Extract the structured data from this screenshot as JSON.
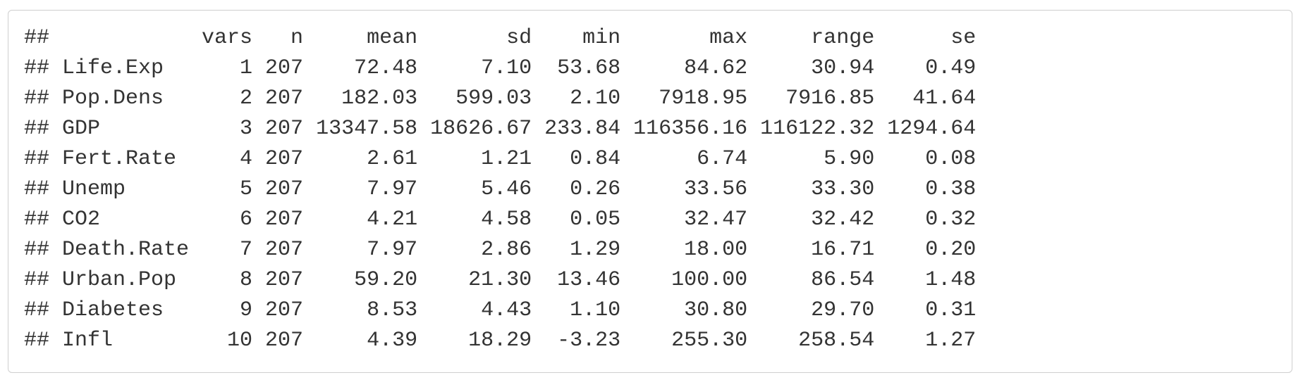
{
  "output": {
    "prefix": "##",
    "header": [
      "",
      "vars",
      "n",
      "mean",
      "sd",
      "min",
      "max",
      "range",
      "se"
    ],
    "rows": [
      [
        "Life.Exp",
        "1",
        "207",
        "72.48",
        "7.10",
        "53.68",
        "84.62",
        "30.94",
        "0.49"
      ],
      [
        "Pop.Dens",
        "2",
        "207",
        "182.03",
        "599.03",
        "2.10",
        "7918.95",
        "7916.85",
        "41.64"
      ],
      [
        "GDP",
        "3",
        "207",
        "13347.58",
        "18626.67",
        "233.84",
        "116356.16",
        "116122.32",
        "1294.64"
      ],
      [
        "Fert.Rate",
        "4",
        "207",
        "2.61",
        "1.21",
        "0.84",
        "6.74",
        "5.90",
        "0.08"
      ],
      [
        "Unemp",
        "5",
        "207",
        "7.97",
        "5.46",
        "0.26",
        "33.56",
        "33.30",
        "0.38"
      ],
      [
        "CO2",
        "6",
        "207",
        "4.21",
        "4.58",
        "0.05",
        "32.47",
        "32.42",
        "0.32"
      ],
      [
        "Death.Rate",
        "7",
        "207",
        "7.97",
        "2.86",
        "1.29",
        "18.00",
        "16.71",
        "0.20"
      ],
      [
        "Urban.Pop",
        "8",
        "207",
        "59.20",
        "21.30",
        "13.46",
        "100.00",
        "86.54",
        "1.48"
      ],
      [
        "Diabetes",
        "9",
        "207",
        "8.53",
        "4.43",
        "1.10",
        "30.80",
        "29.70",
        "0.31"
      ],
      [
        "Infl",
        "10",
        "207",
        "4.39",
        "18.29",
        "-3.23",
        "255.30",
        "258.54",
        "1.27"
      ]
    ]
  }
}
